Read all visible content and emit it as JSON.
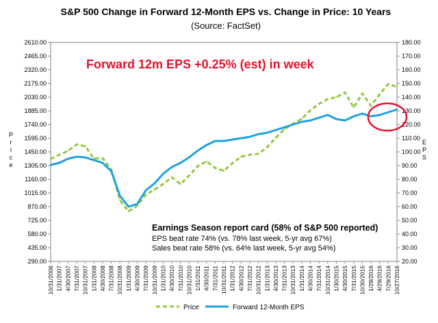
{
  "chart_data": {
    "type": "line",
    "title": "S&P 500 Change in Forward 12-Month EPS vs. Change in Price: 10 Years",
    "subtitle": "(Source: FactSet)",
    "headline": "Forward 12m EPS +0.25% (est) in week",
    "ylabel_left": "Price",
    "ylabel_right": "EPS",
    "y_left_ticks": [
      "290.00",
      "435.00",
      "580.00",
      "725.00",
      "870.00",
      "1015.00",
      "1160.00",
      "1305.00",
      "1450.00",
      "1595.00",
      "1740.00",
      "1885.00",
      "2030.00",
      "2175.00",
      "2320.00",
      "2465.00",
      "2610.00"
    ],
    "y_right_ticks": [
      "20.00",
      "30.00",
      "40.00",
      "50.00",
      "60.00",
      "70.00",
      "80.00",
      "90.00",
      "100.00",
      "110.00",
      "120.00",
      "130.00",
      "140.00",
      "150.00",
      "160.00",
      "170.00",
      "180.00"
    ],
    "ylim_left": [
      290,
      2610
    ],
    "ylim_right": [
      20,
      180
    ],
    "x_labels": [
      "10/31/2006",
      "1/31/2007",
      "4/30/2007",
      "7/31/2007",
      "10/31/2007",
      "1/31/2008",
      "4/30/2008",
      "7/31/2008",
      "10/31/2008",
      "1/31/2009",
      "4/30/2009",
      "7/31/2009",
      "10/31/2009",
      "1/31/2010",
      "4/30/2010",
      "7/31/2010",
      "10/31/2010",
      "1/31/2011",
      "4/30/2011",
      "7/31/2011",
      "10/31/2011",
      "1/31/2012",
      "4/30/2012",
      "7/31/2012",
      "10/31/2012",
      "1/31/2013",
      "4/30/2013",
      "7/31/2013",
      "10/31/2013",
      "1/31/2014",
      "4/30/2014",
      "7/31/2014",
      "10/31/2014",
      "1/30/2015",
      "4/30/2015",
      "7/31/2015",
      "10/30/2015",
      "1/29/2016",
      "4/29/2016",
      "7/29/2016",
      "10/27/2016"
    ],
    "series": [
      {
        "name": "Price",
        "axis": "left",
        "color": "#92c83e",
        "style": "dashed",
        "values": [
          1375,
          1420,
          1460,
          1530,
          1510,
          1380,
          1385,
          1265,
          940,
          820,
          880,
          1000,
          1050,
          1110,
          1180,
          1110,
          1200,
          1300,
          1350,
          1280,
          1250,
          1330,
          1400,
          1420,
          1430,
          1500,
          1600,
          1690,
          1750,
          1800,
          1890,
          1960,
          2010,
          2030,
          2080,
          1920,
          2070,
          1940,
          2060,
          2170,
          2140
        ]
      },
      {
        "name": "Forward 12-Month EPS",
        "axis": "right",
        "color": "#1ba1e2",
        "style": "solid",
        "values": [
          90.5,
          92,
          95,
          96.5,
          96,
          94,
          92,
          86,
          68,
          60,
          62,
          72,
          77,
          84,
          89,
          92,
          96,
          101,
          105,
          108,
          108,
          109,
          110,
          111,
          113,
          114,
          116,
          118,
          120,
          122,
          123,
          125,
          127,
          124,
          123,
          126,
          128,
          126,
          127,
          129,
          131
        ]
      }
    ],
    "annotation": {
      "title": "Earnings Season report card (58% of S&P 500 reported)",
      "lines": [
        "EPS beat rate 74% (vs. 78% last week, 5-yr avg 67%)",
        "Sales beat rate 58% (vs. 64% last week, 5-yr avg 54%)"
      ]
    },
    "highlight_color": "#e8102b",
    "legend_placement": "bottom",
    "grid": false
  }
}
